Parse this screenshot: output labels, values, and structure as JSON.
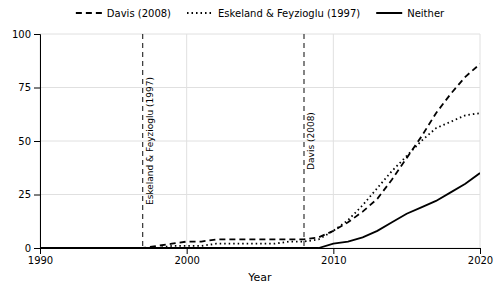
{
  "chart_data": {
    "type": "line",
    "xlabel": "Year",
    "x": [
      1990,
      1991,
      1992,
      1993,
      1994,
      1995,
      1996,
      1997,
      1998,
      1999,
      2000,
      2001,
      2002,
      2003,
      2004,
      2005,
      2006,
      2007,
      2008,
      2009,
      2010,
      2011,
      2012,
      2013,
      2014,
      2015,
      2016,
      2017,
      2018,
      2019,
      2020
    ],
    "series": [
      {
        "name": "Davis (2008)",
        "color": "#000000",
        "line_style": "dashed",
        "values": [
          0,
          0,
          0,
          0,
          0,
          0,
          0,
          0,
          1,
          2,
          3,
          3,
          4,
          4,
          4,
          4,
          4,
          4,
          4,
          5,
          8,
          12,
          17,
          23,
          32,
          42,
          52,
          63,
          72,
          80,
          86
        ]
      },
      {
        "name": "Eskeland & Feyzioglu (1997)",
        "color": "#000000",
        "line_style": "dotted",
        "values": [
          0,
          0,
          0,
          0,
          0,
          0,
          0,
          0,
          0,
          1,
          1,
          1,
          2,
          2,
          2,
          2,
          2,
          3,
          3,
          4,
          8,
          13,
          20,
          28,
          36,
          43,
          50,
          56,
          59,
          62,
          63
        ]
      },
      {
        "name": "Neither",
        "color": "#000000",
        "line_style": "solid",
        "values": [
          0,
          0,
          0,
          0,
          0,
          0,
          0,
          0,
          0,
          0,
          0,
          0,
          0,
          0,
          0,
          0,
          0,
          0,
          0,
          0,
          2,
          3,
          5,
          8,
          12,
          16,
          19,
          22,
          26,
          30,
          35
        ]
      }
    ],
    "annotations": [
      {
        "x": 1997,
        "text": "Eskeland & Feyzioglu (1997)"
      },
      {
        "x": 2008,
        "text": "Davis (2008)"
      }
    ],
    "xlim": [
      1990,
      2020
    ],
    "xticks": [
      1990,
      2000,
      2010,
      2020
    ],
    "ylim": [
      0,
      100
    ],
    "yticks": [
      0,
      25,
      50,
      75,
      100
    ],
    "grid": true,
    "legend": "top"
  }
}
